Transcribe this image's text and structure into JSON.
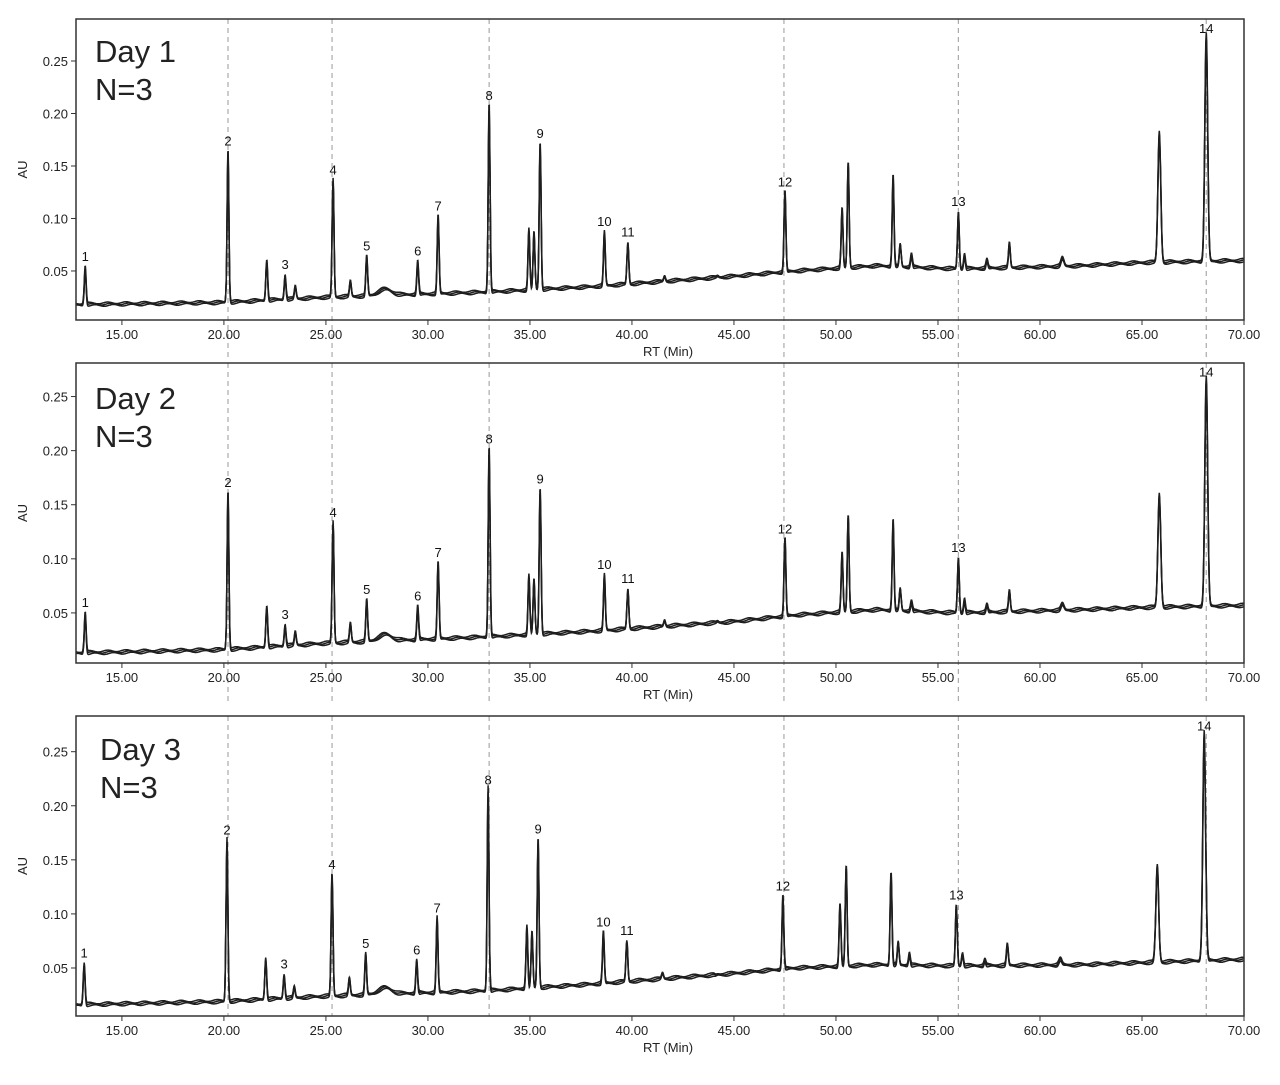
{
  "chart_data": {
    "type": "line",
    "xlabel": "RT (Min)",
    "ylabel": "AU",
    "xlim": [
      12.75,
      70
    ],
    "xticks": [
      "15.00",
      "20.00",
      "25.00",
      "30.00",
      "35.00",
      "40.00",
      "45.00",
      "50.00",
      "55.00",
      "60.00",
      "65.00",
      "70.00"
    ],
    "yticks": [
      "0.05",
      "0.10",
      "0.15",
      "0.20",
      "0.25"
    ],
    "reference_lines_rt": [
      20.2,
      25.3,
      33.0,
      47.45,
      56.0,
      68.15
    ],
    "panels": [
      {
        "title": "Day 1",
        "subtitle": "N=3",
        "ylim": [
          0.0033,
          0.29
        ],
        "baseline": [
          [
            12.75,
            0.018
          ],
          [
            20,
            0.02
          ],
          [
            25,
            0.025
          ],
          [
            33,
            0.03
          ],
          [
            38,
            0.035
          ],
          [
            45,
            0.045
          ],
          [
            48,
            0.05
          ],
          [
            52,
            0.055
          ],
          [
            56,
            0.052
          ],
          [
            62,
            0.055
          ],
          [
            65,
            0.058
          ],
          [
            70,
            0.06
          ]
        ],
        "peaks": [
          [
            13.2,
            0.053
          ],
          [
            20.2,
            0.163
          ],
          [
            22.1,
            0.059
          ],
          [
            23.0,
            0.045
          ],
          [
            23.5,
            0.035
          ],
          [
            25.35,
            0.135
          ],
          [
            26.2,
            0.04
          ],
          [
            27.0,
            0.063
          ],
          [
            29.5,
            0.058
          ],
          [
            30.5,
            0.101
          ],
          [
            33.0,
            0.206
          ],
          [
            34.95,
            0.088
          ],
          [
            35.2,
            0.086
          ],
          [
            35.5,
            0.17
          ],
          [
            38.65,
            0.086
          ],
          [
            39.8,
            0.076
          ],
          [
            41.6,
            0.045
          ],
          [
            44.2,
            0.045
          ],
          [
            47.5,
            0.124
          ],
          [
            50.3,
            0.108
          ],
          [
            50.6,
            0.152
          ],
          [
            52.8,
            0.139
          ],
          [
            53.15,
            0.075
          ],
          [
            53.7,
            0.065
          ],
          [
            56.0,
            0.105
          ],
          [
            56.3,
            0.065
          ],
          [
            57.4,
            0.06
          ],
          [
            58.5,
            0.076
          ],
          [
            61.1,
            0.062
          ],
          [
            65.85,
            0.18
          ],
          [
            68.15,
            0.27
          ]
        ],
        "labels": [
          [
            "1",
            13.2,
            0.053
          ],
          [
            "2",
            20.2,
            0.163
          ],
          [
            "3",
            23.0,
            0.045
          ],
          [
            "4",
            25.35,
            0.135
          ],
          [
            "5",
            27.0,
            0.063
          ],
          [
            "6",
            29.5,
            0.058
          ],
          [
            "7",
            30.5,
            0.101
          ],
          [
            "8",
            33.0,
            0.206
          ],
          [
            "9",
            35.5,
            0.17
          ],
          [
            "10",
            38.65,
            0.086
          ],
          [
            "11",
            39.8,
            0.076
          ],
          [
            "12",
            47.5,
            0.124
          ],
          [
            "13",
            56.0,
            0.105
          ],
          [
            "14",
            68.15,
            0.27
          ]
        ]
      },
      {
        "title": "Day 2",
        "subtitle": "N=3",
        "ylim": [
          0.0037,
          0.281
        ],
        "baseline": [
          [
            12.75,
            0.013
          ],
          [
            20,
            0.016
          ],
          [
            25,
            0.022
          ],
          [
            33,
            0.028
          ],
          [
            38,
            0.033
          ],
          [
            45,
            0.042
          ],
          [
            48,
            0.048
          ],
          [
            52,
            0.053
          ],
          [
            56,
            0.05
          ],
          [
            62,
            0.053
          ],
          [
            65,
            0.055
          ],
          [
            70,
            0.057
          ]
        ],
        "peaks": [
          [
            13.2,
            0.049
          ],
          [
            20.2,
            0.16
          ],
          [
            22.1,
            0.055
          ],
          [
            23.0,
            0.038
          ],
          [
            23.5,
            0.032
          ],
          [
            25.35,
            0.132
          ],
          [
            26.2,
            0.04
          ],
          [
            27.0,
            0.061
          ],
          [
            29.5,
            0.055
          ],
          [
            30.5,
            0.095
          ],
          [
            33.0,
            0.2
          ],
          [
            34.95,
            0.083
          ],
          [
            35.2,
            0.08
          ],
          [
            35.5,
            0.163
          ],
          [
            38.65,
            0.084
          ],
          [
            39.8,
            0.071
          ],
          [
            41.6,
            0.043
          ],
          [
            44.2,
            0.042
          ],
          [
            47.5,
            0.117
          ],
          [
            50.3,
            0.104
          ],
          [
            50.6,
            0.139
          ],
          [
            52.8,
            0.134
          ],
          [
            53.15,
            0.072
          ],
          [
            53.7,
            0.06
          ],
          [
            56.0,
            0.1
          ],
          [
            56.3,
            0.062
          ],
          [
            57.4,
            0.057
          ],
          [
            58.5,
            0.07
          ],
          [
            61.1,
            0.058
          ],
          [
            65.85,
            0.158
          ],
          [
            68.15,
            0.262
          ]
        ],
        "labels": [
          [
            "1",
            13.2,
            0.049
          ],
          [
            "2",
            20.2,
            0.16
          ],
          [
            "3",
            23.0,
            0.038
          ],
          [
            "4",
            25.35,
            0.132
          ],
          [
            "5",
            27.0,
            0.061
          ],
          [
            "6",
            29.5,
            0.055
          ],
          [
            "7",
            30.5,
            0.095
          ],
          [
            "8",
            33.0,
            0.2
          ],
          [
            "9",
            35.5,
            0.163
          ],
          [
            "10",
            38.65,
            0.084
          ],
          [
            "11",
            39.8,
            0.071
          ],
          [
            "12",
            47.5,
            0.117
          ],
          [
            "13",
            56.0,
            0.1
          ],
          [
            "14",
            68.15,
            0.262
          ]
        ]
      },
      {
        "title": "Day 3",
        "subtitle": "N=3",
        "ylim": [
          0.0056,
          0.283
        ],
        "baseline": [
          [
            12.75,
            0.016
          ],
          [
            20,
            0.019
          ],
          [
            25,
            0.024
          ],
          [
            33,
            0.029
          ],
          [
            38,
            0.035
          ],
          [
            45,
            0.045
          ],
          [
            48,
            0.05
          ],
          [
            52,
            0.053
          ],
          [
            56,
            0.052
          ],
          [
            62,
            0.053
          ],
          [
            65,
            0.055
          ],
          [
            70,
            0.058
          ]
        ],
        "peaks": [
          [
            13.15,
            0.053
          ],
          [
            20.15,
            0.167
          ],
          [
            22.05,
            0.058
          ],
          [
            22.95,
            0.043
          ],
          [
            23.45,
            0.032
          ],
          [
            25.3,
            0.135
          ],
          [
            26.15,
            0.04
          ],
          [
            26.95,
            0.062
          ],
          [
            29.45,
            0.056
          ],
          [
            30.45,
            0.095
          ],
          [
            32.95,
            0.213
          ],
          [
            34.85,
            0.087
          ],
          [
            35.1,
            0.082
          ],
          [
            35.4,
            0.168
          ],
          [
            38.6,
            0.082
          ],
          [
            39.75,
            0.074
          ],
          [
            41.5,
            0.045
          ],
          [
            44.1,
            0.043
          ],
          [
            47.4,
            0.115
          ],
          [
            50.2,
            0.107
          ],
          [
            50.5,
            0.143
          ],
          [
            52.7,
            0.136
          ],
          [
            53.05,
            0.073
          ],
          [
            53.6,
            0.063
          ],
          [
            55.9,
            0.107
          ],
          [
            56.2,
            0.063
          ],
          [
            57.3,
            0.057
          ],
          [
            58.4,
            0.071
          ],
          [
            61.0,
            0.058
          ],
          [
            65.75,
            0.143
          ],
          [
            68.05,
            0.263
          ]
        ],
        "labels": [
          [
            "1",
            13.15,
            0.053
          ],
          [
            "2",
            20.15,
            0.167
          ],
          [
            "3",
            22.95,
            0.043
          ],
          [
            "4",
            25.3,
            0.135
          ],
          [
            "5",
            26.95,
            0.062
          ],
          [
            "6",
            29.45,
            0.056
          ],
          [
            "7",
            30.45,
            0.095
          ],
          [
            "8",
            32.95,
            0.213
          ],
          [
            "9",
            35.4,
            0.168
          ],
          [
            "10",
            38.6,
            0.082
          ],
          [
            "11",
            39.75,
            0.074
          ],
          [
            "12",
            47.4,
            0.115
          ],
          [
            "13",
            55.9,
            0.107
          ],
          [
            "14",
            68.05,
            0.263
          ]
        ]
      }
    ]
  },
  "colors": {
    "trace": "#1e1e1e",
    "refline": "#aaaaaa",
    "frame": "#333333"
  }
}
